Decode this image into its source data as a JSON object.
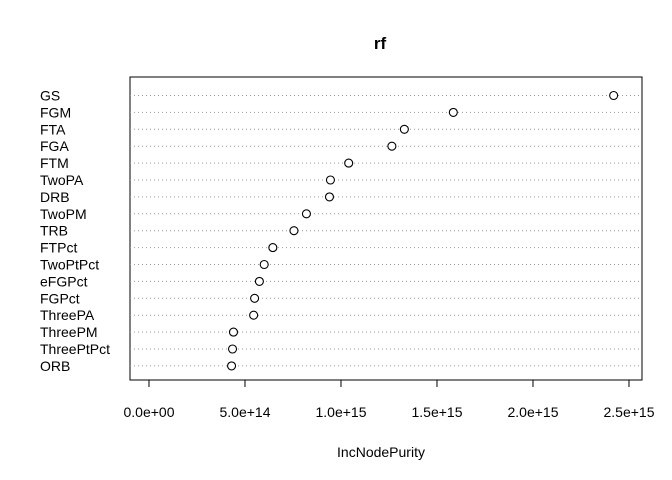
{
  "chart_data": {
    "type": "scatter",
    "title": "rf",
    "xlabel": "IncNodePurity",
    "xlim": [
      -50000000000000.0,
      2550000000000000.0
    ],
    "xticks": [
      0,
      500000000000000.0,
      1000000000000000.0,
      1500000000000000.0,
      2000000000000000.0,
      2500000000000000.0
    ],
    "xtick_labels": [
      "0.0e+00",
      "5.0e+14",
      "1.0e+15",
      "1.5e+15",
      "2.0e+15",
      "2.5e+15"
    ],
    "grid": "dotted horizontal",
    "points": [
      {
        "label": "GS",
        "value": 2420000000000000.0
      },
      {
        "label": "FGM",
        "value": 1585000000000000.0
      },
      {
        "label": "FTA",
        "value": 1330000000000000.0
      },
      {
        "label": "FGA",
        "value": 1265000000000000.0
      },
      {
        "label": "FTM",
        "value": 1040000000000000.0
      },
      {
        "label": "TwoPA",
        "value": 945000000000000.0
      },
      {
        "label": "DRB",
        "value": 940000000000000.0
      },
      {
        "label": "TwoPM",
        "value": 820000000000000.0
      },
      {
        "label": "TRB",
        "value": 755000000000000.0
      },
      {
        "label": "FTPct",
        "value": 645000000000000.0
      },
      {
        "label": "TwoPtPct",
        "value": 600000000000000.0
      },
      {
        "label": "eFGPct",
        "value": 575000000000000.0
      },
      {
        "label": "FGPct",
        "value": 550000000000000.0
      },
      {
        "label": "ThreePA",
        "value": 545000000000000.0
      },
      {
        "label": "ThreePM",
        "value": 440000000000000.0
      },
      {
        "label": "ThreePtPct",
        "value": 435000000000000.0
      },
      {
        "label": "ORB",
        "value": 430000000000000.0
      }
    ]
  }
}
